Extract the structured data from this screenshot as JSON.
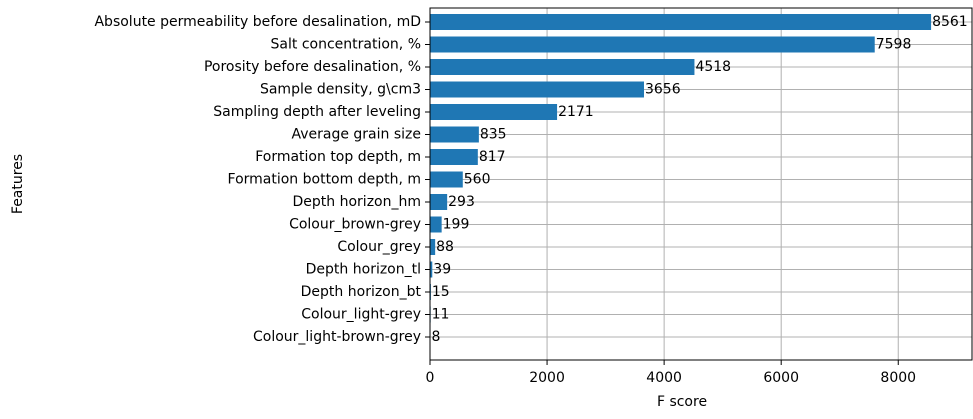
{
  "chart_data": {
    "type": "barh",
    "xlabel": "F score",
    "ylabel": "Features",
    "categories": [
      "Absolute permeability before desalination, mD",
      "Salt concentration, %",
      "Porosity before desalination, %",
      "Sample density, g\\cm3",
      "Sampling depth after leveling",
      "Average grain size",
      "Formation top depth, m",
      "Formation bottom depth, m",
      "Depth horizon_hm",
      "Colour_brown-grey",
      "Colour_grey",
      "Depth horizon_tl",
      "Depth horizon_bt",
      "Colour_light-grey",
      "Colour_light-brown-grey"
    ],
    "values": [
      8561,
      7598,
      4518,
      3656,
      2171,
      835,
      817,
      560,
      293,
      199,
      88,
      39,
      15,
      11,
      8
    ],
    "color": "#1f77b4",
    "xlim": [
      0,
      9260
    ],
    "xticks": [
      0,
      2000,
      4000,
      6000,
      8000
    ],
    "grid": true
  }
}
